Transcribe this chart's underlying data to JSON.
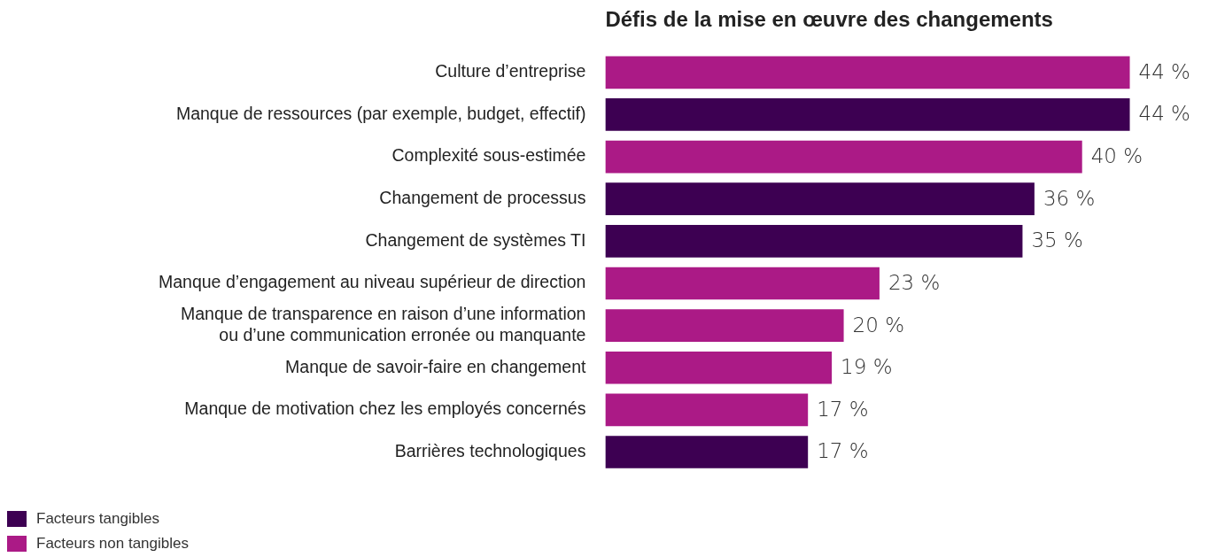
{
  "chart_data": {
    "type": "bar",
    "orientation": "horizontal",
    "stacked": true,
    "title": "Défis de la mise en œuvre des changements",
    "categories": [
      "Culture d’entreprise",
      "Manque de ressources (par exemple, budget, effectif)",
      "Complexité sous-estimée",
      "Changement de processus",
      "Changement de systèmes TI",
      "Manque d’engagement au niveau supérieur de direction",
      "Manque de transparence en raison d’une information\nou d’une communication erronée ou manquante",
      "Manque de savoir-faire en changement",
      "Manque de motivation chez les employés concernés",
      "Barrières technologiques"
    ],
    "series": [
      {
        "name": "Facteurs tangibles",
        "color": "#3d0052",
        "values": [
          null,
          44,
          null,
          36,
          35,
          null,
          null,
          null,
          null,
          17
        ],
        "value_labels": [
          null,
          "44 %",
          null,
          "36 %",
          "35 %",
          null,
          null,
          null,
          null,
          "17 %"
        ]
      },
      {
        "name": "Facteurs non tangibles",
        "color": "#ab1a86",
        "values": [
          44,
          null,
          40,
          null,
          null,
          23,
          20,
          19,
          17,
          null
        ],
        "value_labels": [
          "44 %",
          null,
          "40 %",
          null,
          null,
          "23 %",
          "20 %",
          "19 %",
          "17 %",
          null
        ]
      }
    ],
    "tick_labels": "y",
    "legend": "bottom left"
  }
}
